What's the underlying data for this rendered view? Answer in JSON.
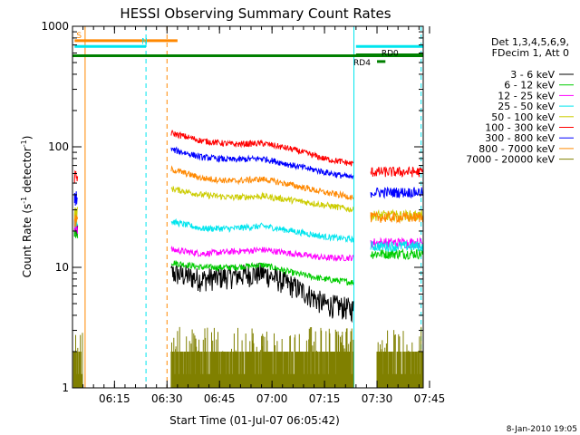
{
  "chart_data": {
    "type": "line",
    "title": "HESSI Observing Summary Count Rates",
    "xlabel": "Start Time (01-Jul-07 06:05:42)",
    "ylabel_main": "Count Rate (s",
    "ylabel_sup1": "-1",
    "ylabel_mid": " detector",
    "ylabel_sup2": "-1",
    "ylabel_end": ")",
    "y_scale": "log",
    "ylim": [
      1,
      1000
    ],
    "xlim_minutes": [
      6.05,
      7.72
    ],
    "x_ticks": [
      {
        "label": "06:15",
        "value": 6.25
      },
      {
        "label": "06:30",
        "value": 6.5
      },
      {
        "label": "06:45",
        "value": 6.75
      },
      {
        "label": "07:00",
        "value": 7.0
      },
      {
        "label": "07:15",
        "value": 7.25
      },
      {
        "label": "07:30",
        "value": 7.5
      },
      {
        "label": "07:45",
        "value": 7.75
      }
    ],
    "y_ticks": [
      {
        "label": "1",
        "value": 1
      },
      {
        "label": "10",
        "value": 10
      },
      {
        "label": "100",
        "value": 100
      },
      {
        "label": "1000",
        "value": 1000
      }
    ],
    "legend_header": [
      "Det 1,3,4,5,6,9,",
      "FDecim 1, Att 0"
    ],
    "series": [
      {
        "name": "3 - 6 keV",
        "color": "#000000",
        "pre": 20,
        "level": [
          9,
          8,
          8.5,
          9,
          7,
          5,
          4.5
        ],
        "post": null
      },
      {
        "name": "6 - 12 keV",
        "color": "#00cc00",
        "pre": 20,
        "level": [
          11,
          10,
          10,
          10.5,
          9,
          8,
          7.5
        ],
        "post": 13
      },
      {
        "name": "12 - 25 keV",
        "color": "#ff00ff",
        "pre": 22,
        "level": [
          14,
          13,
          13.5,
          14,
          13,
          12,
          12
        ],
        "post": 16
      },
      {
        "name": "25 - 50 keV",
        "color": "#00e5ee",
        "pre": 25,
        "level": [
          24,
          21,
          21,
          22,
          20,
          18,
          17
        ],
        "post": 15
      },
      {
        "name": "50 - 100 keV",
        "color": "#cccc00",
        "pre": 28,
        "level": [
          45,
          40,
          38,
          39,
          36,
          33,
          30
        ],
        "post": 27
      },
      {
        "name": "100 - 300 keV",
        "color": "#ff0000",
        "pre": 55,
        "level": [
          130,
          112,
          105,
          107,
          95,
          80,
          72
        ],
        "post": 62
      },
      {
        "name": "300 - 800 keV",
        "color": "#0000ff",
        "pre": 38,
        "level": [
          95,
          82,
          78,
          80,
          70,
          62,
          55
        ],
        "post": 42
      },
      {
        "name": "800 - 7000 keV",
        "color": "#ff8800",
        "pre": 24,
        "level": [
          65,
          55,
          52,
          54,
          48,
          42,
          38
        ],
        "post": 26
      },
      {
        "name": "7000 - 20000 keV",
        "color": "#808000",
        "pre": null,
        "level": null,
        "post": null
      }
    ],
    "flags": [
      {
        "label": "S",
        "color": "#ff8800",
        "y": 760,
        "x1": 6.06,
        "x2": 6.55
      },
      {
        "label": "N",
        "color": "#00e5ee",
        "y": 680,
        "x1": 6.06,
        "x2": 6.4
      },
      {
        "label": "",
        "color": "#00e5ee",
        "y": 680,
        "x1": 7.4,
        "x2": 7.72
      },
      {
        "label": "",
        "color": "#008000",
        "y": 570,
        "x1": 6.05,
        "x2": 7.72
      },
      {
        "label": "RD0",
        "color": "#008000",
        "y": 580,
        "x1": 7.4,
        "x2": 7.73
      },
      {
        "label": "RD4",
        "color": "#008000",
        "y": 510,
        "x1": 7.5,
        "x2": 7.54
      }
    ],
    "vlines": [
      {
        "x": 6.05,
        "color": "#00e5ee",
        "style": "solid"
      },
      {
        "x": 6.11,
        "color": "#ff8800",
        "style": "solid"
      },
      {
        "x": 6.4,
        "color": "#00e5ee",
        "style": "dashed"
      },
      {
        "x": 6.5,
        "color": "#ff8800",
        "style": "dashed"
      },
      {
        "x": 7.39,
        "color": "#00e5ee",
        "style": "solid"
      },
      {
        "x": 7.71,
        "color": "#00e5ee",
        "style": "dashed"
      }
    ],
    "footer": "8-Jan-2010 19:05"
  }
}
